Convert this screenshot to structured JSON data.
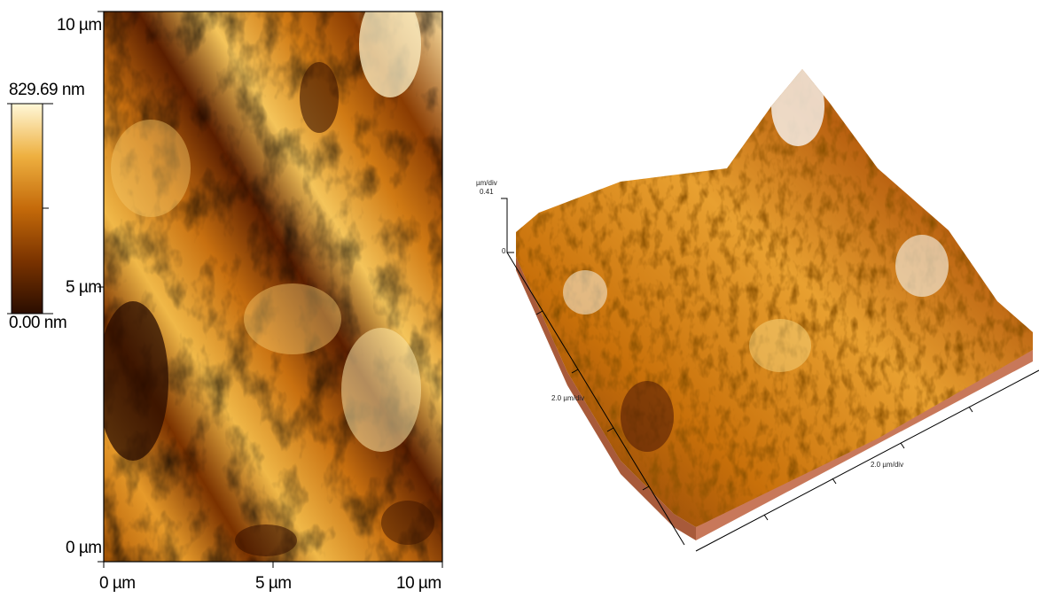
{
  "colorbar": {
    "max_label": "829.69 nm",
    "min_label": "0.00 nm"
  },
  "map2d": {
    "y_ticks": [
      "10 µm",
      "5 µm",
      "0 µm"
    ],
    "x_ticks": [
      "0 µm",
      "5 µm",
      "10 µm"
    ]
  },
  "plot3d": {
    "z_unit": "µm/div",
    "z_max": "0.41",
    "z_min": "0",
    "y_axis_label": "2.0 µm/div",
    "x_axis_label": "2.0 µm/div"
  },
  "colors": {
    "dark": "#3a1200",
    "mid": "#c8700a",
    "light": "#fff2c0",
    "base": "#c0704c"
  }
}
